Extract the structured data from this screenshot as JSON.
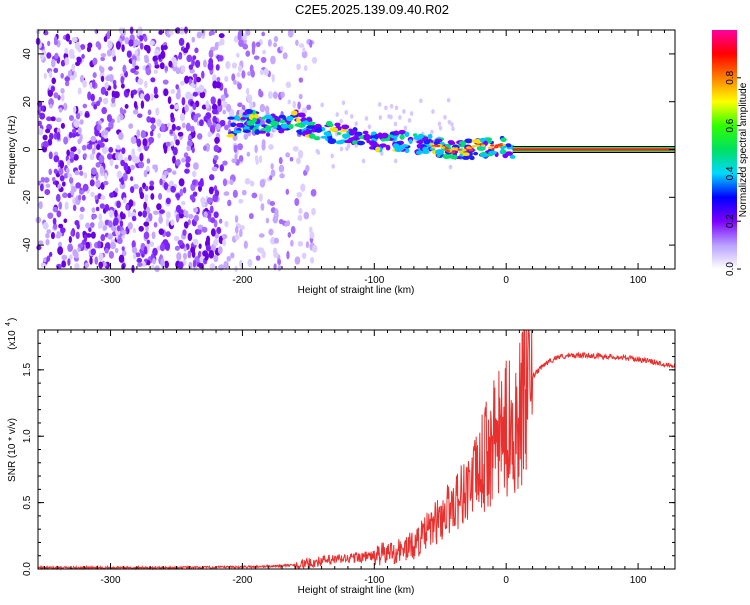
{
  "title": "C2E5.2025.139.09.40.R02",
  "chart_data": [
    {
      "type": "heatmap",
      "xlabel": "Height of straight line (km)",
      "ylabel": "Frequency (Hz)",
      "xlim": [
        -355,
        128
      ],
      "ylim": [
        -50,
        50
      ],
      "xticks": [
        -300,
        -200,
        -100,
        0,
        100
      ],
      "yticks": [
        -40,
        -20,
        0,
        20,
        40
      ],
      "colorbar": {
        "label": "Normalized spectral amplitude",
        "range": [
          0,
          1
        ],
        "ticks": [
          "0.0",
          "0.2",
          "0.4",
          "0.6",
          "0.8"
        ],
        "colors": [
          "#ffffff",
          "#b8a0ff",
          "#7b00ff",
          "#0000ff",
          "#00d8ff",
          "#00e060",
          "#30ff00",
          "#ffff00",
          "#ff8000",
          "#ff0000",
          "#ff00a0"
        ]
      },
      "ridge": {
        "x": [
          -210,
          -195,
          -180,
          -170,
          -160,
          -150,
          -140,
          -130,
          -120,
          -110,
          -100,
          -90,
          -80,
          -70,
          -60,
          -50,
          -40,
          -30,
          -20,
          -10,
          0,
          5
        ],
        "y": [
          9,
          12,
          10,
          11,
          12,
          9,
          8,
          7,
          6,
          6,
          4,
          3,
          4,
          3,
          2,
          1,
          -1,
          0,
          1,
          1,
          1,
          0
        ]
      },
      "carrier": {
        "x_start": 5,
        "x_end": 128,
        "y": 0
      }
    },
    {
      "type": "line",
      "xlabel": "Height of straight line (km)",
      "ylabel": "SNR (10 * v/v)",
      "yscale_label": "(x10",
      "yscale_exp": "4",
      "xlim": [
        -355,
        128
      ],
      "ylim": [
        0,
        1.8
      ],
      "xticks": [
        -300,
        -200,
        -100,
        0,
        100
      ],
      "yticks": [
        0.0,
        0.5,
        1.0,
        1.5
      ],
      "ytick_labels": [
        "0.0",
        "0.5",
        "1.0",
        "1.5"
      ],
      "color": "#e8302e",
      "series": [
        {
          "x": [
            -355,
            -300,
            -250,
            -200,
            -180,
            -160,
            -150,
            -140,
            -120,
            -100,
            -80,
            -70,
            -60,
            -50,
            -40,
            -30,
            -20,
            -10,
            0,
            5,
            10,
            15,
            20,
            30,
            40,
            60,
            80,
            100,
            128
          ],
          "y": [
            0.01,
            0.01,
            0.01,
            0.015,
            0.02,
            0.03,
            0.04,
            0.06,
            0.08,
            0.1,
            0.14,
            0.18,
            0.28,
            0.38,
            0.5,
            0.6,
            0.75,
            0.95,
            1.05,
            1.1,
            1.15,
            1.3,
            1.45,
            1.55,
            1.6,
            1.61,
            1.6,
            1.58,
            1.53
          ]
        }
      ]
    }
  ]
}
